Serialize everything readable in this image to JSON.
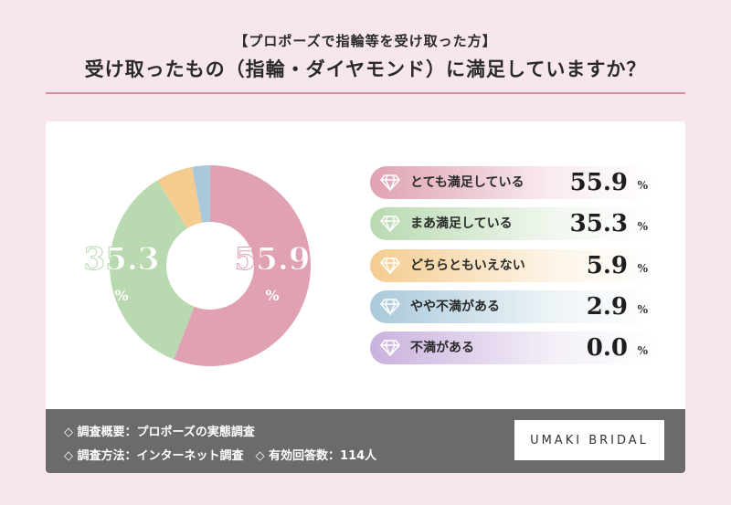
{
  "header": {
    "subtitle": "【プロポーズで指輪等を受け取った方】",
    "title": "受け取ったもの（指輪・ダイヤモンド）に満足していますか？"
  },
  "chart_data": {
    "type": "pie",
    "categories": [
      "とても満足している",
      "まあ満足している",
      "どちらともいえない",
      "やや不満がある",
      "不満がある"
    ],
    "values": [
      55.9,
      35.3,
      5.9,
      2.9,
      0.0
    ],
    "value_texts": [
      "55.9",
      "35.3",
      "5.9",
      "2.9",
      "0.0"
    ],
    "unit": "%",
    "colors": [
      "#e0a2b2",
      "#b9d9b1",
      "#f4cc8f",
      "#a9c9da",
      "#c9b1dd"
    ],
    "donut_labels": [
      {
        "value": "55.9",
        "unit": "%"
      },
      {
        "value": "35.3",
        "unit": "%"
      }
    ]
  },
  "legend_icon": "diamond-icon",
  "footer": {
    "line1": "◇ 調査概要：プロポーズの実態調査",
    "line2": "◇ 調査方法：インターネット調査　◇ 有効回答数：114人",
    "brand": "UMAKI BRIDAL"
  }
}
